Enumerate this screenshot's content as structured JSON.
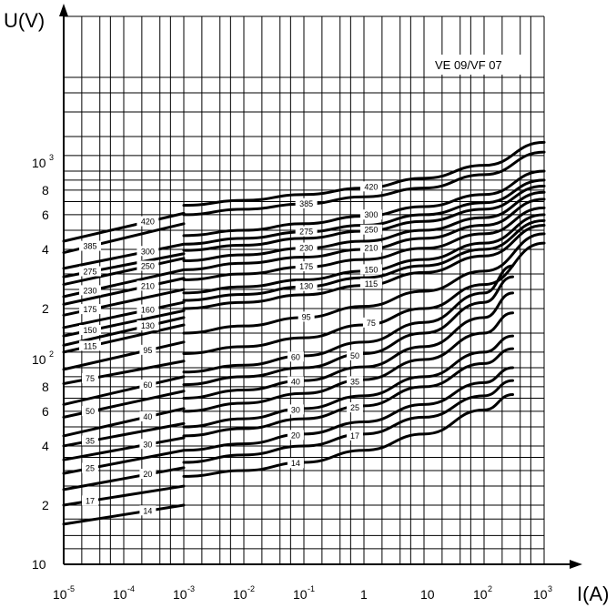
{
  "chart_data": {
    "type": "line",
    "title": "",
    "annotation": "VE 09/VF 07",
    "xlabel": "I(A)",
    "ylabel": "U(V)",
    "xscale": "log",
    "yscale": "log",
    "xlim": [
      1e-05,
      1000
    ],
    "ylim": [
      10,
      2000
    ],
    "grid": true,
    "x_ticks": [
      {
        "exp": "-5",
        "base": "10"
      },
      {
        "exp": "-4",
        "base": "10"
      },
      {
        "exp": "-3",
        "base": "10"
      },
      {
        "exp": "-2",
        "base": "10"
      },
      {
        "exp": "-1",
        "base": "10"
      },
      {
        "exp": "",
        "base": "1"
      },
      {
        "exp": "",
        "base": "10"
      },
      {
        "exp": "2",
        "base": "10"
      },
      {
        "exp": "3",
        "base": "10"
      }
    ],
    "y_ticks": [
      {
        "v": 10,
        "label": "10",
        "exp": ""
      },
      {
        "v": 20,
        "label": "2",
        "exp": ""
      },
      {
        "v": 30,
        "label": "",
        "exp": ""
      },
      {
        "v": 40,
        "label": "4",
        "exp": ""
      },
      {
        "v": 60,
        "label": "6",
        "exp": ""
      },
      {
        "v": 80,
        "label": "8",
        "exp": ""
      },
      {
        "v": 100,
        "label": "10",
        "exp": "2"
      },
      {
        "v": 200,
        "label": "2",
        "exp": ""
      },
      {
        "v": 400,
        "label": "4",
        "exp": ""
      },
      {
        "v": 600,
        "label": "6",
        "exp": ""
      },
      {
        "v": 800,
        "label": "8",
        "exp": ""
      },
      {
        "v": 1000,
        "label": "10",
        "exp": "3"
      }
    ],
    "low_range_series": [
      {
        "name": "420",
        "x": [
          1e-05,
          0.001
        ],
        "y": [
          440,
          610
        ]
      },
      {
        "name": "385",
        "x": [
          1e-05,
          0.001
        ],
        "y": [
          385,
          540
        ]
      },
      {
        "name": "300",
        "x": [
          1e-05,
          0.001
        ],
        "y": [
          320,
          425
        ]
      },
      {
        "name": "275",
        "x": [
          1e-05,
          0.001
        ],
        "y": [
          290,
          380
        ]
      },
      {
        "name": "250",
        "x": [
          1e-05,
          0.001
        ],
        "y": [
          265,
          360
        ]
      },
      {
        "name": "230",
        "x": [
          1e-05,
          0.001
        ],
        "y": [
          230,
          315
        ]
      },
      {
        "name": "210",
        "x": [
          1e-05,
          0.001
        ],
        "y": [
          210,
          285
        ]
      },
      {
        "name": "175",
        "x": [
          1e-05,
          0.001
        ],
        "y": [
          185,
          250
        ]
      },
      {
        "name": "160",
        "x": [
          1e-05,
          0.001
        ],
        "y": [
          160,
          215
        ]
      },
      {
        "name": "150",
        "x": [
          1e-05,
          0.001
        ],
        "y": [
          145,
          195
        ]
      },
      {
        "name": "130",
        "x": [
          1e-05,
          0.001
        ],
        "y": [
          130,
          180
        ]
      },
      {
        "name": "115",
        "x": [
          1e-05,
          0.001
        ],
        "y": [
          120,
          165
        ]
      },
      {
        "name": "95",
        "x": [
          1e-05,
          0.001
        ],
        "y": [
          98,
          135
        ]
      },
      {
        "name": "75",
        "x": [
          1e-05,
          0.001
        ],
        "y": [
          83,
          108
        ]
      },
      {
        "name": "60",
        "x": [
          1e-05,
          0.001
        ],
        "y": [
          65,
          90
        ]
      },
      {
        "name": "50",
        "x": [
          1e-05,
          0.001
        ],
        "y": [
          56,
          76
        ]
      },
      {
        "name": "40",
        "x": [
          1e-05,
          0.001
        ],
        "y": [
          45,
          62
        ]
      },
      {
        "name": "35",
        "x": [
          1e-05,
          0.001
        ],
        "y": [
          40,
          52
        ]
      },
      {
        "name": "30",
        "x": [
          1e-05,
          0.001
        ],
        "y": [
          34,
          44
        ]
      },
      {
        "name": "25",
        "x": [
          1e-05,
          0.001
        ],
        "y": [
          29,
          38
        ]
      },
      {
        "name": "20",
        "x": [
          1e-05,
          0.001
        ],
        "y": [
          24,
          31
        ]
      },
      {
        "name": "17",
        "x": [
          1e-05,
          0.001
        ],
        "y": [
          20,
          25
        ]
      },
      {
        "name": "14",
        "x": [
          1e-05,
          0.001
        ],
        "y": [
          16,
          20
        ]
      }
    ],
    "high_range_series": [
      {
        "name": "420",
        "x": [
          0.001,
          0.01,
          0.1,
          1,
          10,
          100,
          1000
        ],
        "y": [
          670,
          710,
          760,
          820,
          920,
          1070,
          1400
        ]
      },
      {
        "name": "385",
        "x": [
          0.001,
          0.01,
          0.1,
          1,
          10,
          100,
          1000
        ],
        "y": [
          600,
          640,
          680,
          740,
          820,
          960,
          1250
        ]
      },
      {
        "name": "300",
        "x": [
          0.001,
          0.01,
          0.1,
          1,
          10,
          100,
          1000
        ],
        "y": [
          470,
          500,
          540,
          590,
          660,
          760,
          1000
        ]
      },
      {
        "name": "275",
        "x": [
          0.001,
          0.01,
          0.1,
          1,
          10,
          100,
          1000
        ],
        "y": [
          425,
          455,
          490,
          530,
          600,
          690,
          900
        ]
      },
      {
        "name": "250",
        "x": [
          0.001,
          0.01,
          0.1,
          1,
          10,
          100,
          1000
        ],
        "y": [
          395,
          420,
          455,
          495,
          555,
          640,
          840
        ]
      },
      {
        "name": "230",
        "x": [
          0.001,
          0.01,
          0.1,
          1,
          10,
          100,
          1000
        ],
        "y": [
          350,
          375,
          405,
          440,
          500,
          580,
          780
        ]
      },
      {
        "name": "210",
        "x": [
          0.001,
          0.01,
          0.1,
          1,
          10,
          100,
          1000
        ],
        "y": [
          315,
          340,
          365,
          400,
          455,
          530,
          720
        ]
      },
      {
        "name": "175",
        "x": [
          0.001,
          0.01,
          0.1,
          1,
          10,
          100,
          1000
        ],
        "y": [
          280,
          300,
          325,
          355,
          405,
          480,
          650
        ]
      },
      {
        "name": "150",
        "x": [
          0.001,
          0.01,
          0.1,
          1,
          10,
          100,
          1000
        ],
        "y": [
          240,
          258,
          280,
          310,
          355,
          430,
          600
        ]
      },
      {
        "name": "130",
        "x": [
          0.001,
          0.01,
          0.1,
          1,
          10,
          100,
          1000
        ],
        "y": [
          220,
          236,
          258,
          287,
          330,
          400,
          560
        ]
      },
      {
        "name": "115",
        "x": [
          0.001,
          0.01,
          0.1,
          1,
          10,
          100,
          1000
        ],
        "y": [
          200,
          215,
          235,
          262,
          305,
          370,
          530
        ]
      },
      {
        "name": "95",
        "x": [
          0.001,
          0.01,
          0.1,
          1,
          10,
          100,
          1000
        ],
        "y": [
          150,
          163,
          180,
          205,
          245,
          310,
          480
        ]
      },
      {
        "name": "75",
        "x": [
          0.001,
          0.01,
          0.1,
          1,
          10,
          100,
          1000
        ],
        "y": [
          118,
          128,
          142,
          165,
          200,
          265,
          430
        ]
      },
      {
        "name": "60",
        "x": [
          0.001,
          0.01,
          0.1,
          1,
          10,
          100,
          300
        ],
        "y": [
          95,
          103,
          115,
          135,
          170,
          240,
          330
        ]
      },
      {
        "name": "50",
        "x": [
          0.001,
          0.01,
          0.1,
          1,
          10,
          100,
          300
        ],
        "y": [
          82,
          90,
          100,
          118,
          150,
          215,
          290
        ]
      },
      {
        "name": "40",
        "x": [
          0.001,
          0.01,
          0.1,
          1,
          10,
          100,
          300
        ],
        "y": [
          70,
          77,
          86,
          101,
          128,
          180,
          240
        ]
      },
      {
        "name": "35",
        "x": [
          0.001,
          0.01,
          0.1,
          1,
          10,
          100,
          300
        ],
        "y": [
          60,
          66,
          74,
          87,
          110,
          150,
          190
        ]
      },
      {
        "name": "30",
        "x": [
          0.001,
          0.01,
          0.1,
          1,
          10,
          100,
          300
        ],
        "y": [
          50,
          55,
          62,
          72,
          90,
          120,
          145
        ]
      },
      {
        "name": "25",
        "x": [
          0.001,
          0.01,
          0.1,
          1,
          10,
          100,
          300
        ],
        "y": [
          45,
          49,
          55,
          64,
          80,
          105,
          125
        ]
      },
      {
        "name": "20",
        "x": [
          0.001,
          0.01,
          0.1,
          1,
          10,
          100,
          300
        ],
        "y": [
          38,
          41,
          46,
          53,
          65,
          84,
          100
        ]
      },
      {
        "name": "17",
        "x": [
          0.001,
          0.01,
          0.1,
          1,
          10,
          100,
          300
        ],
        "y": [
          33,
          36,
          40,
          46,
          56,
          72,
          86
        ]
      },
      {
        "name": "14",
        "x": [
          0.001,
          0.01,
          0.1,
          1,
          10,
          100,
          300
        ],
        "y": [
          28,
          30,
          33,
          38,
          46,
          61,
          73
        ]
      }
    ]
  }
}
